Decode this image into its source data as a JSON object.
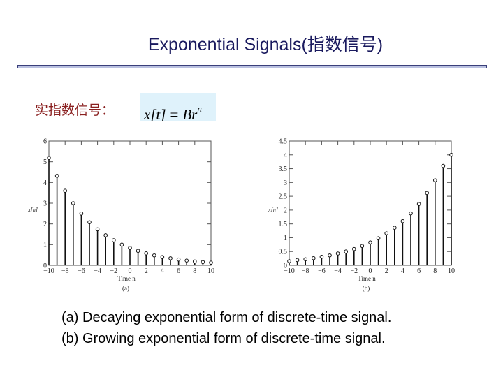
{
  "slide": {
    "title": "Exponential Signals(指数信号)",
    "label": "实指数信号：",
    "formula": {
      "lhs": "x[t]",
      "eq": "=",
      "base": "B",
      "var": "r",
      "exp": "n"
    },
    "caption_a": "(a) Decaying exponential form of discrete-time signal.",
    "caption_b": "(b) Growing exponential form of discrete-time signal."
  },
  "chart_data": [
    {
      "type": "stem",
      "panel_label": "(a)",
      "xlabel": "Time n",
      "ylabel": "x[n]",
      "xlim": [
        -10,
        10
      ],
      "ylim": [
        0,
        6
      ],
      "xticks": [
        -10,
        -8,
        -6,
        -4,
        -2,
        0,
        2,
        4,
        6,
        8,
        10
      ],
      "yticks": [
        0,
        1,
        2,
        3,
        4,
        5,
        6
      ],
      "x": [
        -10,
        -9,
        -8,
        -7,
        -6,
        -5,
        -4,
        -3,
        -2,
        -1,
        0,
        1,
        2,
        3,
        4,
        5,
        6,
        7,
        8,
        9,
        10
      ],
      "y": [
        5.18,
        4.32,
        3.6,
        3.0,
        2.5,
        2.08,
        1.74,
        1.45,
        1.21,
        1.0,
        0.84,
        0.7,
        0.58,
        0.48,
        0.4,
        0.34,
        0.28,
        0.23,
        0.19,
        0.16,
        0.13
      ]
    },
    {
      "type": "stem",
      "panel_label": "(b)",
      "xlabel": "Time n",
      "ylabel": "x[n]",
      "xlim": [
        -10,
        10
      ],
      "ylim": [
        0,
        4.5
      ],
      "xticks": [
        -10,
        -8,
        -6,
        -4,
        -2,
        0,
        2,
        4,
        6,
        8,
        10
      ],
      "yticks": [
        0,
        0.5,
        1,
        1.5,
        2,
        2.5,
        3,
        3.5,
        4,
        4.5
      ],
      "x": [
        -10,
        -9,
        -8,
        -7,
        -6,
        -5,
        -4,
        -3,
        -2,
        -1,
        0,
        1,
        2,
        3,
        4,
        5,
        6,
        7,
        8,
        9,
        10
      ],
      "y": [
        0.15,
        0.19,
        0.22,
        0.26,
        0.31,
        0.36,
        0.43,
        0.5,
        0.59,
        0.7,
        0.83,
        0.98,
        1.16,
        1.36,
        1.6,
        1.88,
        2.22,
        2.62,
        3.08,
        3.6,
        4.0
      ]
    }
  ]
}
